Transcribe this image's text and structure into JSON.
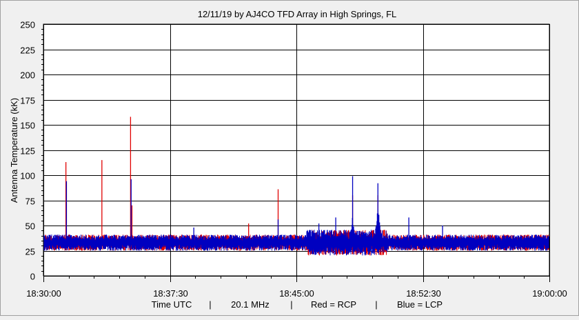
{
  "chart_data": {
    "type": "line",
    "title": "12/11/19  by  AJ4CO TFD Array  in  High Springs, FL",
    "ylabel": "Antenna Temperature (kK)",
    "ylim": [
      0,
      250
    ],
    "yticks": [
      "0",
      "25",
      "50",
      "75",
      "100",
      "125",
      "150",
      "175",
      "200",
      "225",
      "250"
    ],
    "xlim": [
      "18:30:00",
      "19:00:00"
    ],
    "xticks": [
      "18:30:00",
      "18:37:30",
      "18:45:00",
      "18:52:30",
      "19:00:00"
    ],
    "grid": true,
    "footer": {
      "xlabel": "Time UTC",
      "frequency": "20.1 MHz",
      "red": "Red = RCP",
      "blue": "Blue = LCP",
      "sep": "|"
    },
    "series": [
      {
        "name": "RCP",
        "color": "#e00000",
        "baseline": 33,
        "spikes": [
          {
            "t": "18:31:20",
            "value": 113
          },
          {
            "t": "18:33:28",
            "value": 115
          },
          {
            "t": "18:35:10",
            "value": 158
          },
          {
            "t": "18:35:15",
            "value": 70
          },
          {
            "t": "18:42:10",
            "value": 52
          },
          {
            "t": "18:43:55",
            "value": 86
          },
          {
            "t": "18:48:20",
            "value": 80
          },
          {
            "t": "18:49:50",
            "value": 80
          }
        ]
      },
      {
        "name": "LCP",
        "color": "#0000c0",
        "baseline": 33,
        "spikes": [
          {
            "t": "18:31:22",
            "value": 94
          },
          {
            "t": "18:35:12",
            "value": 96
          },
          {
            "t": "18:38:55",
            "value": 48
          },
          {
            "t": "18:43:55",
            "value": 56
          },
          {
            "t": "18:46:20",
            "value": 52
          },
          {
            "t": "18:47:20",
            "value": 58
          },
          {
            "t": "18:48:20",
            "value": 99
          },
          {
            "t": "18:49:50",
            "value": 92
          },
          {
            "t": "18:51:40",
            "value": 58
          },
          {
            "t": "18:53:40",
            "value": 50
          }
        ]
      }
    ]
  }
}
